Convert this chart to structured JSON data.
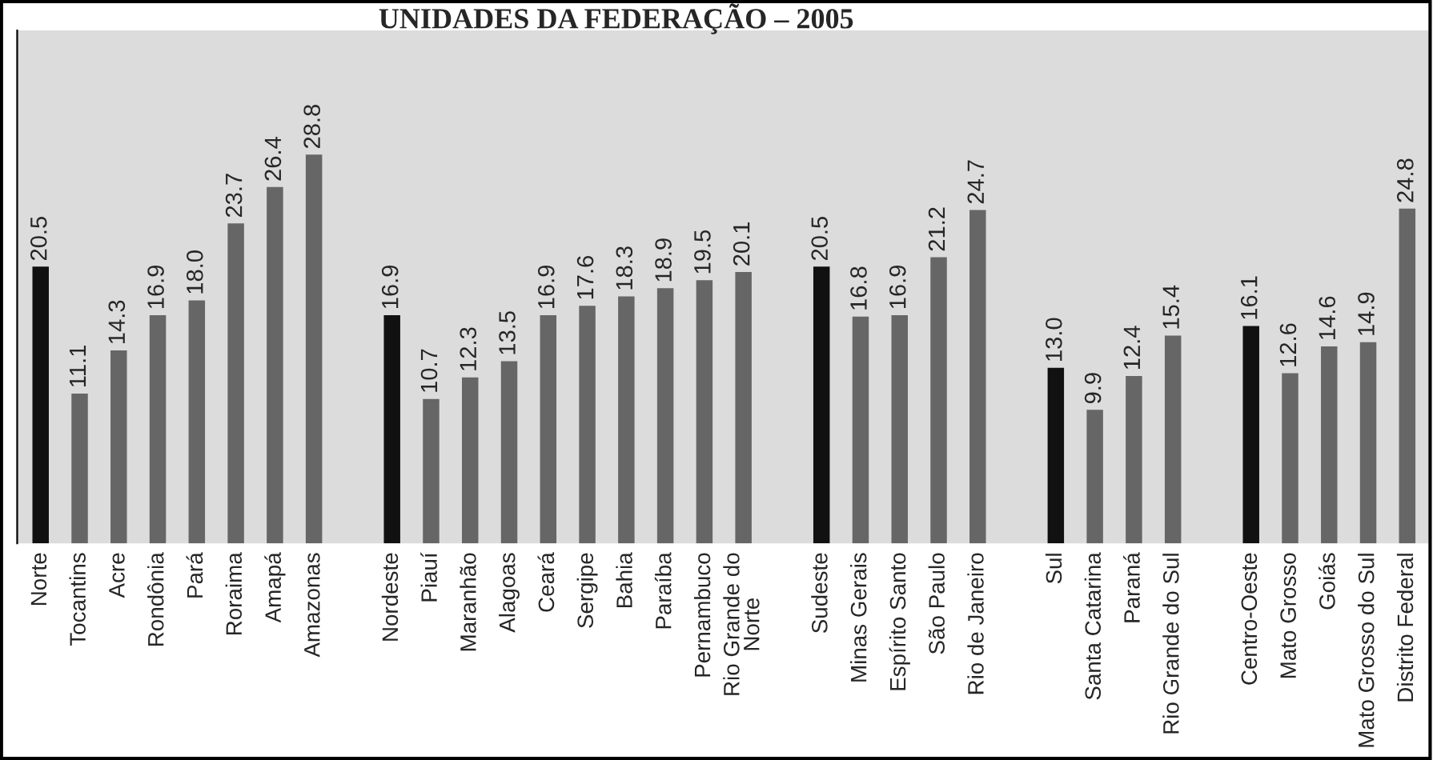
{
  "chart_data": {
    "type": "bar",
    "title": "UNIDADES DA FEDERAÇÃO – 2005",
    "categories": [
      "Norte",
      "Tocantins",
      "Acre",
      "Rondônia",
      "Pará",
      "Roraima",
      "Amapá",
      "Amazonas",
      null,
      "Nordeste",
      "Piauí",
      "Maranhão",
      "Alagoas",
      "Ceará",
      "Sergipe",
      "Bahia",
      "Paraíba",
      "Pernambuco",
      "Rio Grande do\nNorte",
      null,
      "Sudeste",
      "Minas Gerais",
      "Espírito Santo",
      "São Paulo",
      "Rio de Janeiro",
      null,
      "Sul",
      "Santa Catarina",
      "Paraná",
      "Rio Grande do Sul",
      null,
      "Centro-Oeste",
      "Mato Grosso",
      "Goiás",
      "Mato Grosso do Sul",
      "Distrito Federal"
    ],
    "values": [
      20.5,
      11.1,
      14.3,
      16.9,
      18.0,
      23.7,
      26.4,
      28.8,
      null,
      16.9,
      10.7,
      12.3,
      13.5,
      16.9,
      17.6,
      18.3,
      18.9,
      19.5,
      20.1,
      null,
      20.5,
      16.8,
      16.9,
      21.2,
      24.7,
      null,
      13.0,
      9.9,
      12.4,
      15.4,
      null,
      16.1,
      12.6,
      14.6,
      14.9,
      24.8
    ],
    "value_labels": [
      "20.5",
      "11.1",
      "14.3",
      "16.9",
      "18.0",
      "23.7",
      "26.4",
      "28.8",
      null,
      "16.9",
      "10.7",
      "12.3",
      "13.5",
      "16.9",
      "17.6",
      "18.3",
      "18.9",
      "19.5",
      "20.1",
      null,
      "20.5",
      "16.8",
      "16.9",
      "21.2",
      "24.7",
      null,
      "13.0",
      "9.9",
      "12.4",
      "15.4",
      null,
      "16.1",
      "12.6",
      "14.6",
      "14.9",
      "24.8"
    ],
    "colors": [
      "#111111",
      "#666666",
      "#666666",
      "#666666",
      "#666666",
      "#666666",
      "#666666",
      "#666666",
      null,
      "#111111",
      "#666666",
      "#666666",
      "#666666",
      "#666666",
      "#666666",
      "#666666",
      "#666666",
      "#666666",
      "#666666",
      null,
      "#111111",
      "#666666",
      "#666666",
      "#666666",
      "#666666",
      null,
      "#111111",
      "#666666",
      "#666666",
      "#666666",
      null,
      "#111111",
      "#666666",
      "#666666",
      "#666666",
      "#666666"
    ],
    "ylim": [
      0,
      38
    ],
    "grid": false,
    "legend": false
  }
}
